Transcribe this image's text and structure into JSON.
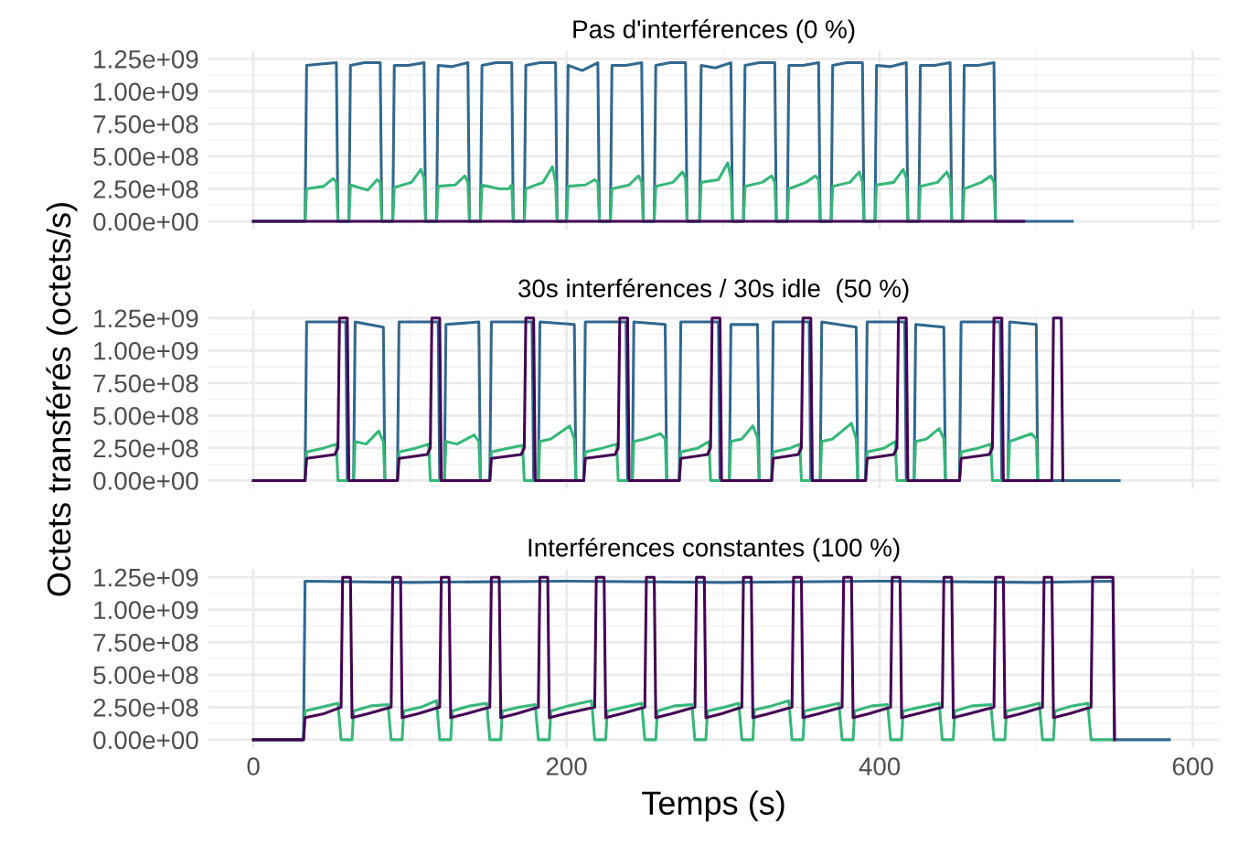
{
  "chart_data": [
    {
      "type": "line",
      "title": "Pas d'interférences (0 %)",
      "xlim": [
        -29,
        617
      ],
      "ylim": [
        -62500000.0,
        1312500000.0
      ],
      "xticks": [
        0,
        200,
        400,
        600
      ],
      "yticks": [
        {
          "value": 0,
          "label": "0.00e+00"
        },
        {
          "value": 250000000.0,
          "label": "2.50e+08"
        },
        {
          "value": 500000000.0,
          "label": "5.00e+08"
        },
        {
          "value": 750000000.0,
          "label": "7.50e+08"
        },
        {
          "value": 1000000000.0,
          "label": "1.00e+09"
        },
        {
          "value": 1250000000.0,
          "label": "1.25e+09"
        }
      ],
      "grid": true,
      "tick_labels": "y",
      "series": [
        {
          "color": "#31688e",
          "x": [
            0,
            33,
            34,
            43,
            53,
            54,
            61,
            62,
            71,
            81,
            82,
            89,
            90,
            99,
            109,
            110,
            117,
            118,
            127,
            137,
            138,
            145,
            146,
            155,
            165,
            166,
            173,
            174,
            183,
            193,
            194,
            200,
            201,
            210,
            220,
            221,
            228,
            229,
            238,
            248,
            249,
            256,
            257,
            266,
            276,
            277,
            285,
            286,
            295,
            305,
            306,
            313,
            314,
            323,
            333,
            334,
            341,
            342,
            351,
            361,
            362,
            369,
            370,
            379,
            389,
            390,
            397,
            398,
            407,
            417,
            418,
            425,
            426,
            435,
            445,
            446,
            453,
            454,
            463,
            473,
            474,
            523
          ],
          "values": [
            0,
            0,
            1200000000.0,
            1210000000.0,
            1220000000.0,
            0,
            0,
            1200000000.0,
            1220000000.0,
            1220000000.0,
            0,
            0,
            1200000000.0,
            1200000000.0,
            1220000000.0,
            0,
            0,
            1200000000.0,
            1190000000.0,
            1220000000.0,
            0,
            0,
            1200000000.0,
            1220000000.0,
            1220000000.0,
            0,
            0,
            1200000000.0,
            1220000000.0,
            1220000000.0,
            0,
            0,
            1200000000.0,
            1160000000.0,
            1220000000.0,
            0,
            0,
            1200000000.0,
            1200000000.0,
            1220000000.0,
            0,
            0,
            1200000000.0,
            1220000000.0,
            1220000000.0,
            0,
            0,
            1200000000.0,
            1180000000.0,
            1220000000.0,
            0,
            0,
            1200000000.0,
            1220000000.0,
            1220000000.0,
            0,
            0,
            1200000000.0,
            1200000000.0,
            1220000000.0,
            0,
            0,
            1200000000.0,
            1220000000.0,
            1220000000.0,
            0,
            0,
            1200000000.0,
            1190000000.0,
            1220000000.0,
            0,
            0,
            1200000000.0,
            1200000000.0,
            1220000000.0,
            0,
            0,
            1200000000.0,
            1200000000.0,
            1220000000.0,
            0,
            0
          ]
        },
        {
          "color": "#35b779",
          "x": [
            0,
            33,
            34,
            45,
            51,
            53,
            54,
            61,
            62,
            73,
            79,
            81,
            82,
            89,
            90,
            101,
            107,
            109,
            110,
            117,
            118,
            129,
            135,
            137,
            138,
            145,
            146,
            157,
            163,
            165,
            166,
            173,
            174,
            185,
            191,
            193,
            194,
            200,
            201,
            212,
            218,
            220,
            221,
            228,
            229,
            240,
            246,
            248,
            249,
            256,
            257,
            268,
            274,
            276,
            277,
            285,
            286,
            297,
            303,
            305,
            306,
            313,
            314,
            325,
            331,
            333,
            334,
            341,
            342,
            353,
            359,
            361,
            362,
            369,
            370,
            381,
            387,
            389,
            390,
            397,
            398,
            409,
            415,
            417,
            418,
            425,
            426,
            437,
            443,
            445,
            446,
            453,
            454,
            465,
            471,
            473,
            474
          ],
          "values": [
            0,
            0,
            250000000.0,
            270000000.0,
            330000000.0,
            300000000.0,
            0,
            0,
            280000000.0,
            240000000.0,
            320000000.0,
            300000000.0,
            0,
            0,
            260000000.0,
            300000000.0,
            400000000.0,
            330000000.0,
            0,
            0,
            270000000.0,
            280000000.0,
            350000000.0,
            300000000.0,
            0,
            0,
            280000000.0,
            250000000.0,
            250000000.0,
            280000000.0,
            0,
            0,
            250000000.0,
            300000000.0,
            420000000.0,
            300000000.0,
            0,
            0,
            270000000.0,
            280000000.0,
            320000000.0,
            300000000.0,
            0,
            0,
            250000000.0,
            280000000.0,
            350000000.0,
            300000000.0,
            0,
            0,
            270000000.0,
            300000000.0,
            380000000.0,
            330000000.0,
            0,
            0,
            300000000.0,
            320000000.0,
            450000000.0,
            330000000.0,
            0,
            0,
            270000000.0,
            300000000.0,
            350000000.0,
            300000000.0,
            0,
            0,
            250000000.0,
            300000000.0,
            350000000.0,
            320000000.0,
            0,
            0,
            270000000.0,
            300000000.0,
            380000000.0,
            300000000.0,
            0,
            0,
            280000000.0,
            300000000.0,
            400000000.0,
            330000000.0,
            0,
            0,
            270000000.0,
            300000000.0,
            380000000.0,
            320000000.0,
            0,
            0,
            250000000.0,
            300000000.0,
            350000000.0,
            300000000.0,
            0
          ]
        },
        {
          "color": "#440154",
          "x": [
            0,
            492
          ],
          "values": [
            0,
            0
          ]
        }
      ]
    },
    {
      "type": "line",
      "title": "30s interférences / 30s idle  (50 %)",
      "ylabel": "Octets transférés (octets/s)",
      "xlim": [
        -29,
        617
      ],
      "ylim": [
        -62500000.0,
        1312500000.0
      ],
      "xticks": [
        0,
        200,
        400,
        600
      ],
      "yticks": [
        {
          "value": 0,
          "label": "0.00e+00"
        },
        {
          "value": 250000000.0,
          "label": "2.50e+08"
        },
        {
          "value": 500000000.0,
          "label": "5.00e+08"
        },
        {
          "value": 750000000.0,
          "label": "7.50e+08"
        },
        {
          "value": 1000000000.0,
          "label": "1.00e+09"
        },
        {
          "value": 1250000000.0,
          "label": "1.25e+09"
        }
      ],
      "grid": true,
      "tick_labels": "y",
      "series": [
        {
          "color": "#31688e",
          "x": [
            0,
            33,
            34,
            59,
            60,
            64,
            65,
            83,
            84,
            92,
            93,
            118,
            119,
            122,
            123,
            144,
            145,
            151,
            152,
            178,
            179,
            182,
            183,
            205,
            206,
            211,
            212,
            238,
            239,
            242,
            243,
            263,
            264,
            272,
            273,
            297,
            298,
            304,
            305,
            322,
            323,
            331,
            332,
            355,
            356,
            362,
            363,
            385,
            386,
            391,
            392,
            416,
            417,
            422,
            423,
            441,
            442,
            451,
            452,
            477,
            478,
            482,
            483,
            500,
            501,
            553
          ],
          "values": [
            0,
            0,
            1220000000.0,
            1220000000.0,
            0,
            0,
            1220000000.0,
            1180000000.0,
            0,
            0,
            1220000000.0,
            1220000000.0,
            0,
            0,
            1200000000.0,
            1220000000.0,
            0,
            0,
            1220000000.0,
            1220000000.0,
            0,
            0,
            1220000000.0,
            1200000000.0,
            0,
            0,
            1220000000.0,
            1220000000.0,
            0,
            0,
            1220000000.0,
            1200000000.0,
            0,
            0,
            1220000000.0,
            1220000000.0,
            0,
            0,
            1200000000.0,
            1200000000.0,
            0,
            0,
            1220000000.0,
            1220000000.0,
            0,
            0,
            1220000000.0,
            1180000000.0,
            0,
            0,
            1220000000.0,
            1220000000.0,
            0,
            0,
            1200000000.0,
            1180000000.0,
            0,
            0,
            1220000000.0,
            1220000000.0,
            0,
            0,
            1220000000.0,
            1200000000.0,
            0,
            0
          ]
        },
        {
          "color": "#35b779",
          "x": [
            0,
            33,
            34,
            45,
            53,
            54,
            64,
            65,
            72,
            80,
            83,
            84,
            92,
            93,
            104,
            112,
            113,
            122,
            123,
            130,
            141,
            144,
            145,
            151,
            152,
            163,
            172,
            173,
            182,
            183,
            190,
            202,
            205,
            206,
            211,
            212,
            223,
            232,
            233,
            242,
            243,
            250,
            260,
            263,
            264,
            272,
            273,
            284,
            291,
            292,
            304,
            305,
            312,
            319,
            322,
            323,
            331,
            332,
            343,
            349,
            350,
            362,
            363,
            370,
            382,
            385,
            386,
            391,
            392,
            403,
            410,
            411,
            422,
            423,
            430,
            438,
            441,
            442,
            451,
            452,
            463,
            471,
            472,
            482,
            483,
            490,
            497,
            500,
            501
          ],
          "values": [
            0,
            0,
            220000000.0,
            250000000.0,
            280000000.0,
            0,
            0,
            300000000.0,
            280000000.0,
            380000000.0,
            300000000.0,
            0,
            0,
            220000000.0,
            250000000.0,
            280000000.0,
            0,
            0,
            300000000.0,
            280000000.0,
            350000000.0,
            300000000.0,
            0,
            0,
            220000000.0,
            250000000.0,
            270000000.0,
            0,
            0,
            300000000.0,
            320000000.0,
            420000000.0,
            320000000.0,
            0,
            0,
            220000000.0,
            250000000.0,
            280000000.0,
            0,
            0,
            300000000.0,
            320000000.0,
            360000000.0,
            320000000.0,
            0,
            0,
            220000000.0,
            250000000.0,
            300000000.0,
            0,
            0,
            300000000.0,
            320000000.0,
            420000000.0,
            330000000.0,
            0,
            0,
            220000000.0,
            250000000.0,
            280000000.0,
            0,
            0,
            300000000.0,
            320000000.0,
            440000000.0,
            320000000.0,
            0,
            0,
            220000000.0,
            250000000.0,
            300000000.0,
            0,
            0,
            300000000.0,
            320000000.0,
            400000000.0,
            320000000.0,
            0,
            0,
            220000000.0,
            250000000.0,
            280000000.0,
            0,
            0,
            300000000.0,
            330000000.0,
            360000000.0,
            320000000.0,
            0
          ]
        },
        {
          "color": "#440154",
          "x": [
            0,
            33,
            34,
            52,
            54,
            55,
            60,
            61,
            92,
            93,
            111,
            113,
            114,
            119,
            120,
            151,
            152,
            171,
            173,
            174,
            179,
            180,
            211,
            212,
            231,
            233,
            234,
            239,
            240,
            272,
            273,
            290,
            292,
            293,
            298,
            299,
            331,
            332,
            348,
            350,
            351,
            356,
            357,
            391,
            392,
            409,
            411,
            412,
            417,
            418,
            451,
            452,
            470,
            472,
            473,
            478,
            479,
            510,
            511,
            516,
            517
          ],
          "values": [
            0,
            0,
            170000000.0,
            200000000.0,
            250000000.0,
            1250000000.0,
            1250000000.0,
            0,
            0,
            170000000.0,
            200000000.0,
            250000000.0,
            1250000000.0,
            1250000000.0,
            0,
            0,
            170000000.0,
            200000000.0,
            250000000.0,
            1250000000.0,
            1250000000.0,
            0,
            0,
            170000000.0,
            200000000.0,
            250000000.0,
            1250000000.0,
            1250000000.0,
            0,
            0,
            170000000.0,
            200000000.0,
            250000000.0,
            1250000000.0,
            1250000000.0,
            0,
            0,
            170000000.0,
            200000000.0,
            250000000.0,
            1250000000.0,
            1250000000.0,
            0,
            0,
            170000000.0,
            200000000.0,
            250000000.0,
            1250000000.0,
            1250000000.0,
            0,
            0,
            170000000.0,
            200000000.0,
            250000000.0,
            1250000000.0,
            1250000000.0,
            0,
            0,
            1250000000.0,
            1250000000.0,
            0
          ]
        }
      ]
    },
    {
      "type": "line",
      "title": "Interférences constantes (100 %)",
      "xlabel": "Temps (s)",
      "xlim": [
        -29,
        617
      ],
      "ylim": [
        -62500000.0,
        1312500000.0
      ],
      "xticks": [
        0,
        200,
        400,
        600
      ],
      "yticks": [
        {
          "value": 0,
          "label": "0.00e+00"
        },
        {
          "value": 250000000.0,
          "label": "2.50e+08"
        },
        {
          "value": 500000000.0,
          "label": "5.00e+08"
        },
        {
          "value": 750000000.0,
          "label": "7.50e+08"
        },
        {
          "value": 1000000000.0,
          "label": "1.00e+09"
        },
        {
          "value": 1250000000.0,
          "label": "1.25e+09"
        }
      ],
      "grid": true,
      "series": [
        {
          "color": "#31688e",
          "x": [
            0,
            32,
            33,
            100,
            200,
            300,
            400,
            500,
            549,
            550,
            585
          ],
          "values": [
            0,
            0,
            1220000000.0,
            1210000000.0,
            1220000000.0,
            1210000000.0,
            1220000000.0,
            1210000000.0,
            1220000000.0,
            0,
            0
          ]
        },
        {
          "color": "#35b779",
          "x": [
            0,
            32,
            33,
            54,
            56,
            63,
            64,
            75,
            86,
            88,
            95,
            96,
            107,
            117,
            119,
            126,
            127,
            138,
            149,
            151,
            158,
            159,
            170,
            180,
            182,
            189,
            190,
            201,
            216,
            218,
            225,
            226,
            237,
            248,
            250,
            257,
            258,
            269,
            280,
            282,
            289,
            290,
            301,
            310,
            312,
            319,
            320,
            331,
            342,
            344,
            351,
            352,
            363,
            374,
            376,
            383,
            384,
            395,
            405,
            407,
            414,
            415,
            426,
            438,
            440,
            447,
            448,
            459,
            471,
            473,
            480,
            481,
            492,
            502,
            504,
            511,
            512,
            523,
            533,
            535,
            549
          ],
          "values": [
            0,
            0,
            220000000.0,
            280000000.0,
            0,
            0,
            220000000.0,
            260000000.0,
            270000000.0,
            0,
            0,
            220000000.0,
            250000000.0,
            300000000.0,
            0,
            0,
            220000000.0,
            260000000.0,
            280000000.0,
            0,
            0,
            220000000.0,
            250000000.0,
            270000000.0,
            0,
            0,
            220000000.0,
            260000000.0,
            300000000.0,
            0,
            0,
            220000000.0,
            250000000.0,
            280000000.0,
            0,
            0,
            220000000.0,
            260000000.0,
            270000000.0,
            0,
            0,
            220000000.0,
            250000000.0,
            280000000.0,
            0,
            0,
            230000000.0,
            260000000.0,
            300000000.0,
            0,
            0,
            220000000.0,
            250000000.0,
            280000000.0,
            0,
            0,
            220000000.0,
            260000000.0,
            270000000.0,
            0,
            0,
            220000000.0,
            250000000.0,
            280000000.0,
            0,
            0,
            220000000.0,
            260000000.0,
            270000000.0,
            0,
            0,
            220000000.0,
            250000000.0,
            280000000.0,
            0,
            0,
            220000000.0,
            260000000.0,
            280000000.0,
            0,
            0
          ]
        },
        {
          "color": "#440154",
          "x": [
            0,
            32,
            33,
            45,
            56,
            57,
            62,
            63,
            73,
            88,
            89,
            94,
            95,
            105,
            119,
            120,
            125,
            126,
            136,
            151,
            152,
            157,
            158,
            168,
            182,
            183,
            188,
            189,
            199,
            218,
            219,
            224,
            225,
            235,
            250,
            251,
            256,
            257,
            267,
            282,
            283,
            288,
            289,
            299,
            312,
            313,
            318,
            319,
            329,
            344,
            345,
            350,
            351,
            361,
            376,
            377,
            382,
            383,
            393,
            407,
            408,
            413,
            414,
            424,
            440,
            441,
            446,
            447,
            457,
            473,
            474,
            479,
            480,
            490,
            504,
            505,
            510,
            511,
            521,
            535,
            536,
            549,
            550
          ],
          "values": [
            0,
            0,
            170000000.0,
            200000000.0,
            250000000.0,
            1250000000.0,
            1250000000.0,
            170000000.0,
            200000000.0,
            250000000.0,
            1250000000.0,
            1250000000.0,
            170000000.0,
            200000000.0,
            250000000.0,
            1250000000.0,
            1250000000.0,
            170000000.0,
            200000000.0,
            250000000.0,
            1250000000.0,
            1250000000.0,
            170000000.0,
            200000000.0,
            250000000.0,
            1250000000.0,
            1250000000.0,
            170000000.0,
            200000000.0,
            250000000.0,
            1250000000.0,
            1250000000.0,
            170000000.0,
            200000000.0,
            250000000.0,
            1250000000.0,
            1250000000.0,
            170000000.0,
            200000000.0,
            250000000.0,
            1250000000.0,
            1250000000.0,
            170000000.0,
            200000000.0,
            250000000.0,
            1250000000.0,
            1250000000.0,
            170000000.0,
            200000000.0,
            250000000.0,
            1250000000.0,
            1250000000.0,
            170000000.0,
            200000000.0,
            250000000.0,
            1250000000.0,
            1250000000.0,
            170000000.0,
            200000000.0,
            250000000.0,
            1250000000.0,
            1250000000.0,
            170000000.0,
            200000000.0,
            250000000.0,
            1250000000.0,
            1250000000.0,
            170000000.0,
            200000000.0,
            250000000.0,
            1250000000.0,
            1250000000.0,
            170000000.0,
            200000000.0,
            250000000.0,
            1250000000.0,
            1250000000.0,
            170000000.0,
            200000000.0,
            250000000.0,
            1250000000.0,
            1250000000.0,
            0
          ]
        }
      ]
    }
  ]
}
